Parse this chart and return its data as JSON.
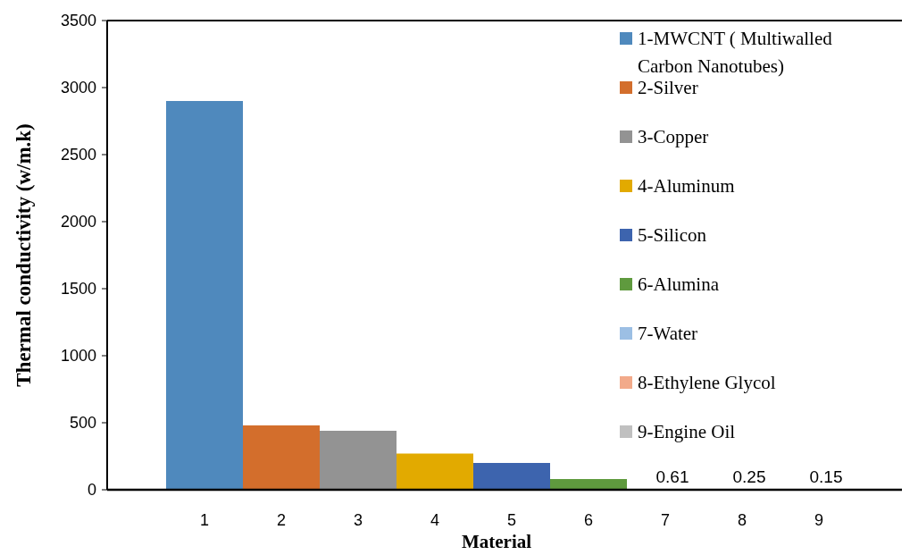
{
  "chart_data": {
    "type": "bar",
    "xlabel": "Material",
    "ylabel": "Thermal conductivity (w/m.k)",
    "categories": [
      "1",
      "2",
      "3",
      "4",
      "5",
      "6",
      "7",
      "8",
      "9"
    ],
    "series": [
      {
        "name": "1-MWCNT ( Multiwalled Carbon Nanotubes)",
        "color": "#4f89bd",
        "values": [
          2900,
          null,
          null,
          null,
          null,
          null,
          null,
          null,
          null
        ]
      },
      {
        "name": "2-Silver",
        "color": "#d36e2c",
        "values": [
          null,
          480,
          null,
          null,
          null,
          null,
          null,
          null,
          null
        ]
      },
      {
        "name": "3-Copper",
        "color": "#939393",
        "values": [
          null,
          null,
          440,
          null,
          null,
          null,
          null,
          null,
          null
        ]
      },
      {
        "name": "4-Aluminum",
        "color": "#e2aa00",
        "values": [
          null,
          null,
          null,
          270,
          null,
          null,
          null,
          null,
          null
        ]
      },
      {
        "name": "5-Silicon",
        "color": "#3d64ae",
        "values": [
          null,
          null,
          null,
          null,
          200,
          null,
          null,
          null,
          null
        ]
      },
      {
        "name": "6-Alumina",
        "color": "#5f9a3e",
        "values": [
          null,
          null,
          null,
          null,
          null,
          80,
          null,
          null,
          null
        ]
      },
      {
        "name": "7-Water",
        "color": "#9cbfe4",
        "values": [
          null,
          null,
          null,
          null,
          null,
          null,
          0.61,
          null,
          null
        ],
        "value_labels": [
          null,
          null,
          null,
          null,
          null,
          null,
          "0.61",
          null,
          null
        ]
      },
      {
        "name": "8-Ethylene Glycol",
        "color": "#f2aa8a",
        "values": [
          null,
          null,
          null,
          null,
          null,
          null,
          null,
          0.25,
          null
        ],
        "value_labels": [
          null,
          null,
          null,
          null,
          null,
          null,
          null,
          "0.25",
          null
        ]
      },
      {
        "name": "9-Engine Oil",
        "color": "#c0c0c0",
        "values": [
          null,
          null,
          null,
          null,
          null,
          null,
          null,
          null,
          0.15
        ],
        "value_labels": [
          null,
          null,
          null,
          null,
          null,
          null,
          null,
          null,
          "0.15"
        ]
      }
    ],
    "ylim": [
      0,
      3500
    ],
    "yticks": [
      0,
      500,
      1000,
      1500,
      2000,
      2500,
      3000,
      3500
    ],
    "legend": "top right"
  }
}
